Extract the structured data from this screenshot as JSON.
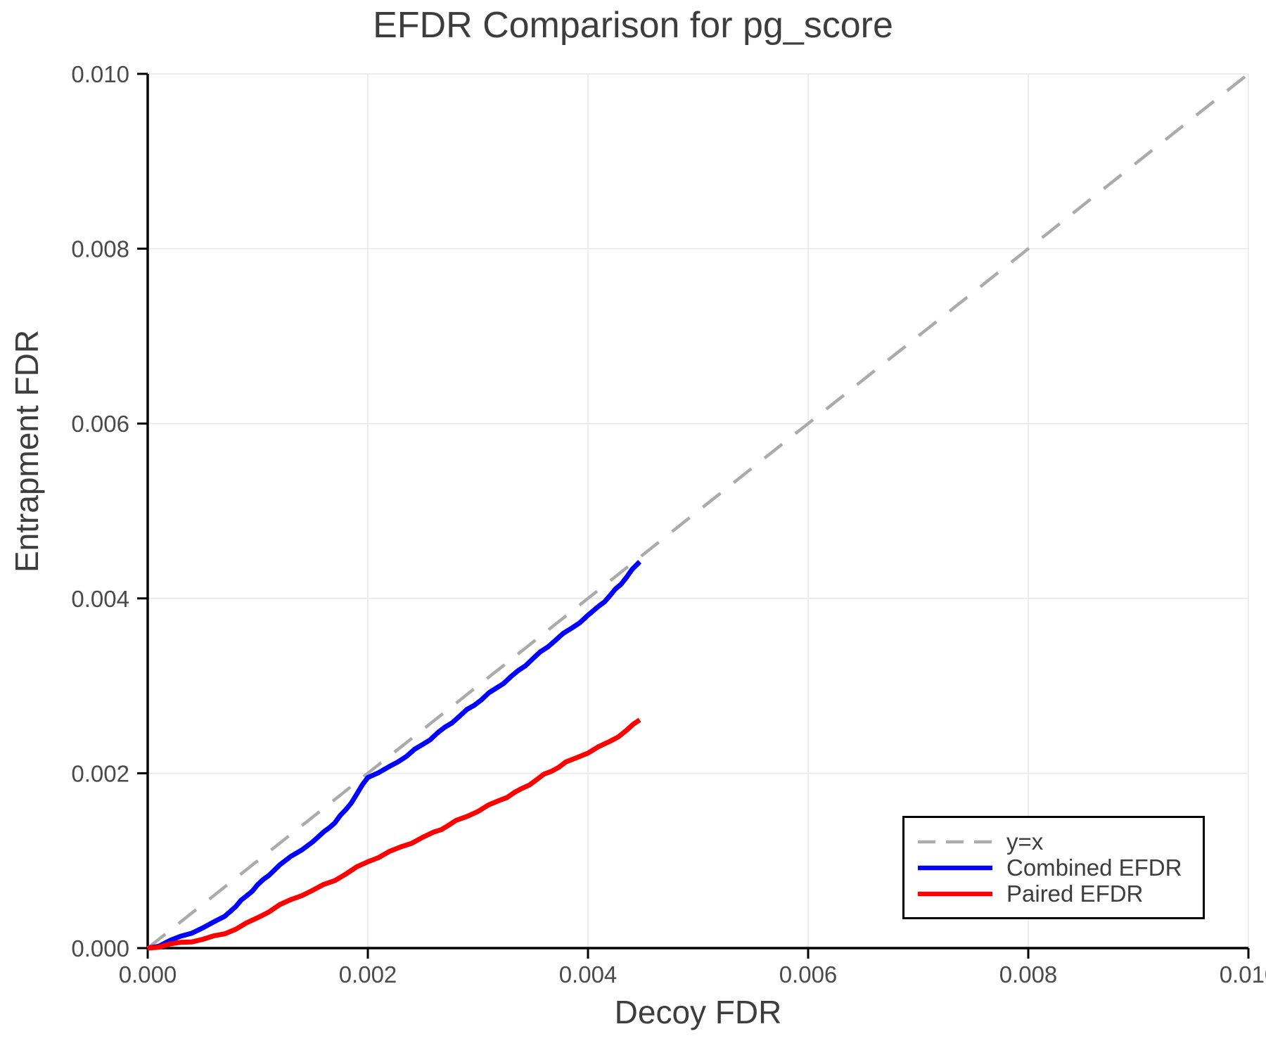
{
  "chart_data": {
    "type": "line",
    "title": "EFDR Comparison for pg_score",
    "xlabel": "Decoy FDR",
    "ylabel": "Entrapment FDR",
    "xlim": [
      0.0,
      0.01
    ],
    "ylim": [
      0.0,
      0.01
    ],
    "grid": true,
    "xticks": {
      "values": [
        0.0,
        0.002,
        0.004,
        0.006,
        0.008,
        0.01
      ],
      "labels": [
        "0.000",
        "0.002",
        "0.004",
        "0.006",
        "0.008",
        "0.010"
      ]
    },
    "yticks": {
      "values": [
        0.0,
        0.002,
        0.004,
        0.006,
        0.008,
        0.01
      ],
      "labels": [
        "0.000",
        "0.002",
        "0.004",
        "0.006",
        "0.008",
        "0.010"
      ]
    },
    "legend": {
      "position": "bottom-right",
      "border_color": "#000000",
      "background": "#ffffff"
    },
    "colors": {
      "grid": "#e8e8e8",
      "axis": "#000000",
      "tick_label": "#4a4a4a",
      "title": "#3d3d3d"
    },
    "series": [
      {
        "name": "y=x",
        "color": "#ababab",
        "style": "dashed",
        "points": [
          [
            0.0,
            0.0
          ],
          [
            0.01,
            0.01
          ]
        ]
      },
      {
        "name": "Combined EFDR",
        "color": "#0000ff",
        "style": "solid",
        "points": [
          [
            0.0,
            0.0
          ],
          [
            0.0001,
            3e-05
          ],
          [
            0.0002,
            8e-05
          ],
          [
            0.0003,
            0.00013
          ],
          [
            0.0004,
            0.00018
          ],
          [
            0.0005,
            0.00023
          ],
          [
            0.0006,
            0.00029
          ],
          [
            0.0007,
            0.00037
          ],
          [
            0.0008,
            0.00048
          ],
          [
            0.0009,
            0.0006
          ],
          [
            0.001,
            0.00072
          ],
          [
            0.0011,
            0.00084
          ],
          [
            0.0012,
            0.00095
          ],
          [
            0.0013,
            0.00104
          ],
          [
            0.0014,
            0.00113
          ],
          [
            0.0015,
            0.00122
          ],
          [
            0.0016,
            0.00132
          ],
          [
            0.0017,
            0.00144
          ],
          [
            0.0018,
            0.00158
          ],
          [
            0.0019,
            0.00176
          ],
          [
            0.002,
            0.00196
          ],
          [
            0.0021,
            0.00201
          ],
          [
            0.0022,
            0.00207
          ],
          [
            0.00235,
            0.0022
          ],
          [
            0.0025,
            0.00233
          ],
          [
            0.0027,
            0.00252
          ],
          [
            0.0029,
            0.00272
          ],
          [
            0.0031,
            0.00291
          ],
          [
            0.0033,
            0.0031
          ],
          [
            0.0035,
            0.00331
          ],
          [
            0.0037,
            0.00352
          ],
          [
            0.00385,
            0.00366
          ],
          [
            0.004,
            0.0038
          ],
          [
            0.0041,
            0.00391
          ],
          [
            0.0042,
            0.00403
          ],
          [
            0.0043,
            0.00417
          ],
          [
            0.0044,
            0.00432
          ],
          [
            0.00447,
            0.00442
          ]
        ]
      },
      {
        "name": "Paired EFDR",
        "color": "#ff0000",
        "style": "solid",
        "points": [
          [
            0.0,
            0.0
          ],
          [
            0.0001,
            2e-05
          ],
          [
            0.0002,
            4e-05
          ],
          [
            0.0003,
            6e-05
          ],
          [
            0.0004,
            8e-05
          ],
          [
            0.0005,
            0.0001
          ],
          [
            0.0006,
            0.00013
          ],
          [
            0.0007,
            0.00017
          ],
          [
            0.0008,
            0.00022
          ],
          [
            0.0009,
            0.00028
          ],
          [
            0.001,
            0.00035
          ],
          [
            0.0011,
            0.00042
          ],
          [
            0.0012,
            0.00049
          ],
          [
            0.0013,
            0.00055
          ],
          [
            0.0014,
            0.00061
          ],
          [
            0.0015,
            0.00066
          ],
          [
            0.0016,
            0.00072
          ],
          [
            0.0017,
            0.00078
          ],
          [
            0.0018,
            0.00085
          ],
          [
            0.0019,
            0.00092
          ],
          [
            0.002,
            0.00099
          ],
          [
            0.0022,
            0.0011
          ],
          [
            0.0024,
            0.00121
          ],
          [
            0.0026,
            0.00132
          ],
          [
            0.0028,
            0.00145
          ],
          [
            0.003,
            0.00157
          ],
          [
            0.0032,
            0.00169
          ],
          [
            0.0034,
            0.00182
          ],
          [
            0.0036,
            0.00198
          ],
          [
            0.0038,
            0.00212
          ],
          [
            0.004,
            0.00224
          ],
          [
            0.0042,
            0.00236
          ],
          [
            0.00435,
            0.00249
          ],
          [
            0.00447,
            0.00261
          ]
        ]
      }
    ]
  }
}
